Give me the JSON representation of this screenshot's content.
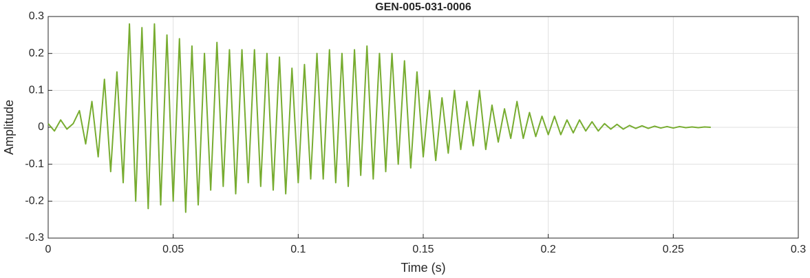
{
  "chart_data": {
    "type": "line",
    "title": "GEN-005-031-0006",
    "xlabel": "Time (s)",
    "ylabel": "Amplitude",
    "xlim": [
      0,
      0.3
    ],
    "ylim": [
      -0.3,
      0.3
    ],
    "xticks": [
      0,
      0.05,
      0.1,
      0.15,
      0.2,
      0.25,
      0.3
    ],
    "yticks": [
      -0.3,
      -0.2,
      -0.1,
      0,
      0.1,
      0.2,
      0.3
    ],
    "grid": true,
    "x": [
      0,
      0.0025,
      0.005,
      0.0075,
      0.01,
      0.0125,
      0.015,
      0.0175,
      0.02,
      0.0225,
      0.025,
      0.0275,
      0.03,
      0.0325,
      0.035,
      0.0375,
      0.04,
      0.0425,
      0.045,
      0.0475,
      0.05,
      0.0525,
      0.055,
      0.0575,
      0.06,
      0.0625,
      0.065,
      0.0675,
      0.07,
      0.0725,
      0.075,
      0.0775,
      0.08,
      0.0825,
      0.085,
      0.0875,
      0.09,
      0.0925,
      0.095,
      0.0975,
      0.1,
      0.1025,
      0.105,
      0.1075,
      0.11,
      0.1125,
      0.115,
      0.1175,
      0.12,
      0.1225,
      0.125,
      0.1275,
      0.13,
      0.1325,
      0.135,
      0.1375,
      0.14,
      0.1425,
      0.145,
      0.1475,
      0.15,
      0.1525,
      0.155,
      0.1575,
      0.16,
      0.1625,
      0.165,
      0.1675,
      0.17,
      0.1725,
      0.175,
      0.1775,
      0.18,
      0.1825,
      0.185,
      0.1875,
      0.19,
      0.1925,
      0.195,
      0.1975,
      0.2,
      0.2025,
      0.205,
      0.2075,
      0.21,
      0.2125,
      0.215,
      0.2175,
      0.22,
      0.2225,
      0.225,
      0.2275,
      0.23,
      0.2325,
      0.235,
      0.2375,
      0.24,
      0.2425,
      0.245,
      0.2475,
      0.25,
      0.2525,
      0.255,
      0.2575,
      0.26,
      0.2625,
      0.265
    ],
    "series": [
      {
        "color": "#77ac30",
        "values": [
          0.01,
          -0.01,
          0.02,
          -0.005,
          0.01,
          0.045,
          -0.045,
          0.07,
          -0.08,
          0.13,
          -0.12,
          0.15,
          -0.15,
          0.28,
          -0.2,
          0.27,
          -0.22,
          0.28,
          -0.21,
          0.25,
          -0.2,
          0.24,
          -0.23,
          0.22,
          -0.21,
          0.2,
          -0.17,
          0.23,
          -0.16,
          0.21,
          -0.18,
          0.21,
          -0.15,
          0.21,
          -0.16,
          0.2,
          -0.17,
          0.19,
          -0.18,
          0.16,
          -0.15,
          0.17,
          -0.14,
          0.2,
          -0.14,
          0.21,
          -0.15,
          0.2,
          -0.16,
          0.21,
          -0.13,
          0.22,
          -0.14,
          0.2,
          -0.12,
          0.2,
          -0.1,
          0.18,
          -0.11,
          0.15,
          -0.08,
          0.1,
          -0.09,
          0.08,
          -0.07,
          0.1,
          -0.06,
          0.07,
          -0.05,
          0.1,
          -0.06,
          0.06,
          -0.04,
          0.05,
          -0.03,
          0.07,
          -0.03,
          0.04,
          -0.025,
          0.03,
          -0.02,
          0.03,
          -0.02,
          0.02,
          -0.015,
          0.02,
          -0.01,
          0.015,
          -0.01,
          0.01,
          -0.005,
          0.008,
          -0.005,
          0.005,
          -0.003,
          0.004,
          -0.003,
          0.003,
          -0.002,
          0.002,
          -0.002,
          0.002,
          -0.001,
          0.001,
          -0.001,
          0.001,
          0
        ]
      }
    ]
  }
}
